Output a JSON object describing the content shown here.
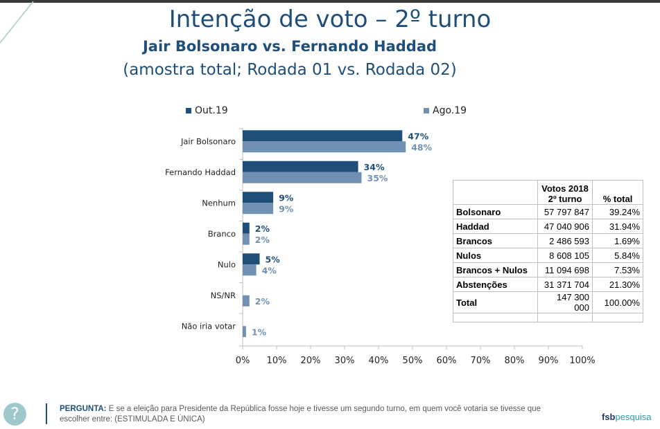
{
  "header": {
    "title": "Intenção de voto – 2º turno",
    "subtitle": "Jair Bolsonaro vs. Fernando Haddad",
    "subtitle2": "(amostra total; Rodada 01 vs. Rodada 02)"
  },
  "colors": {
    "series1": "#1f4e79",
    "series2": "#7191b2"
  },
  "chart_data": {
    "type": "bar",
    "orientation": "horizontal",
    "categories": [
      "Jair Bolsonaro",
      "Fernando Haddad",
      "Nenhum",
      "Branco",
      "Nulo",
      "NS/NR",
      "Não iria votar"
    ],
    "series": [
      {
        "name": "Out.19",
        "values": [
          47,
          34,
          9,
          2,
          5,
          null,
          null
        ],
        "labels": [
          "47%",
          "34%",
          "9%",
          "2%",
          "5%",
          "",
          ""
        ]
      },
      {
        "name": "Ago.19",
        "values": [
          48,
          35,
          9,
          2,
          4,
          2,
          1
        ],
        "labels": [
          "48%",
          "35%",
          "9%",
          "2%",
          "4%",
          "2%",
          "1%"
        ]
      }
    ],
    "xlim": [
      0,
      100
    ],
    "xticks": [
      "0%",
      "10%",
      "20%",
      "30%",
      "40%",
      "50%",
      "60%",
      "70%",
      "80%",
      "90%",
      "100%"
    ],
    "legend": "top"
  },
  "table": {
    "headers": [
      "",
      "Votos 2018\n2º turno",
      "% total"
    ],
    "rows": [
      [
        "Bolsonaro",
        "57 797 847",
        "39.24%"
      ],
      [
        "Haddad",
        "47 040 906",
        "31.94%"
      ],
      [
        "Brancos",
        "2 486 593",
        "1.69%"
      ],
      [
        "Nulos",
        "8 608 105",
        "5.84%"
      ],
      [
        "Brancos + Nulos",
        "11 094 698",
        "7.53%"
      ],
      [
        "Abstenções",
        "31 371 704",
        "21.30%"
      ],
      [
        "Total",
        "147 300 000",
        "100.00%"
      ]
    ]
  },
  "footer": {
    "help_icon": "?",
    "question_label": "PERGUNTA:",
    "question_text": " E se a eleição para Presidente da República fosse hoje e tivesse um segundo turno, em quem você votaria se tivesse que escolher entre: (ESTIMULADA E ÚNICA)",
    "logo_a": "fsb",
    "logo_b": "pesquisa"
  }
}
